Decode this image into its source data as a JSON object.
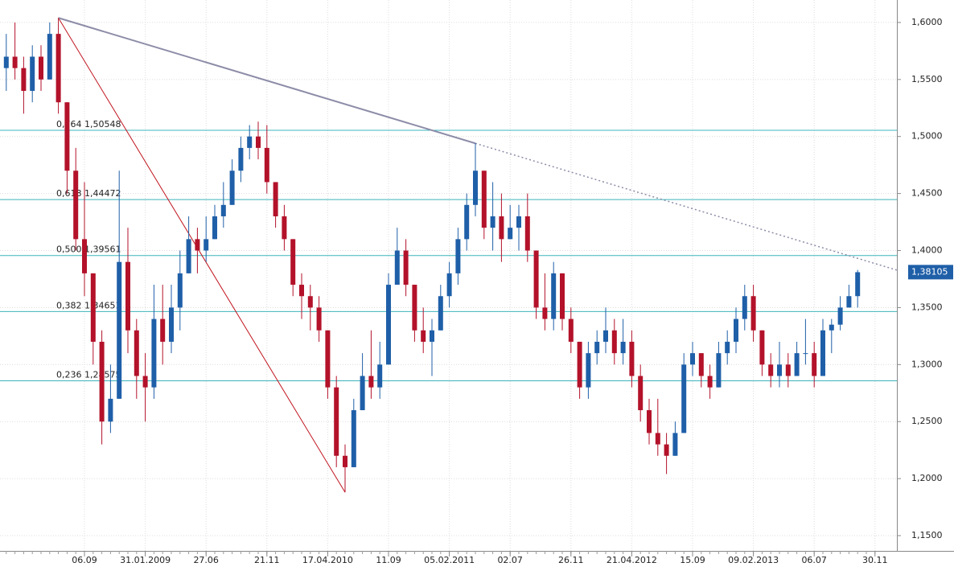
{
  "chart_data": {
    "type": "candlestick",
    "categories": [
      null,
      null,
      null,
      null,
      null,
      null,
      null,
      null,
      null,
      null,
      "06.09",
      null,
      null,
      null,
      null,
      null,
      null,
      "31.01.2009",
      null,
      null,
      null,
      null,
      null,
      null,
      "27.06",
      null,
      null,
      null,
      null,
      null,
      null,
      "21.11",
      null,
      null,
      null,
      null,
      null,
      null,
      "17.04.2010",
      null,
      null,
      null,
      null,
      null,
      null,
      "11.09",
      null,
      null,
      null,
      null,
      null,
      null,
      "05.02.2011",
      null,
      null,
      null,
      null,
      null,
      null,
      "02.07",
      null,
      null,
      null,
      null,
      null,
      null,
      "26.11",
      null,
      null,
      null,
      null,
      null,
      null,
      "21.04.2012",
      null,
      null,
      null,
      null,
      null,
      null,
      "15.09",
      null,
      null,
      null,
      null,
      null,
      null,
      "09.02.2013",
      null,
      null,
      null,
      null,
      null,
      null,
      "06.07",
      null,
      null,
      null,
      null,
      null,
      null,
      "30.11"
    ],
    "open": [
      1.53,
      1.56,
      1.57,
      1.56,
      1.54,
      1.57,
      1.55,
      1.59,
      1.53,
      1.47,
      1.41,
      1.38,
      1.32,
      1.25,
      1.27,
      1.39,
      1.33,
      1.29,
      1.28,
      1.34,
      1.32,
      1.35,
      1.38,
      1.41,
      1.4,
      1.41,
      1.43,
      1.44,
      1.47,
      1.49,
      1.5,
      1.49,
      1.46,
      1.43,
      1.41,
      1.37,
      1.36,
      1.35,
      1.33,
      1.28,
      1.22,
      1.21,
      1.26,
      1.29,
      1.28,
      1.3,
      1.37,
      1.4,
      1.37,
      1.33,
      1.32,
      1.33,
      1.36,
      1.38,
      1.41,
      1.44,
      1.47,
      1.42,
      1.43,
      1.41,
      1.42,
      1.43,
      1.4,
      1.35,
      1.34,
      1.38,
      1.34,
      1.32,
      1.28,
      1.31,
      1.32,
      1.33,
      1.31,
      1.32,
      1.29,
      1.26,
      1.24,
      1.23,
      1.22,
      1.24,
      1.3,
      1.31,
      1.29,
      1.28,
      1.31,
      1.32,
      1.34,
      1.36,
      1.33,
      1.3,
      1.29,
      1.3,
      1.29,
      1.31,
      1.31,
      1.29,
      1.33,
      1.335,
      1.35,
      1.36,
      null,
      null
    ],
    "high": [
      1.58,
      1.59,
      1.6,
      1.57,
      1.58,
      1.58,
      1.6,
      1.604,
      1.53,
      1.49,
      1.46,
      1.38,
      1.33,
      1.3,
      1.47,
      1.42,
      1.34,
      1.31,
      1.37,
      1.37,
      1.37,
      1.4,
      1.43,
      1.42,
      1.43,
      1.44,
      1.46,
      1.48,
      1.5,
      1.51,
      1.513,
      1.51,
      1.46,
      1.44,
      1.41,
      1.38,
      1.37,
      1.36,
      1.33,
      1.29,
      1.23,
      1.27,
      1.31,
      1.33,
      1.32,
      1.38,
      1.42,
      1.41,
      1.37,
      1.35,
      1.34,
      1.37,
      1.39,
      1.42,
      1.45,
      1.494,
      1.47,
      1.46,
      1.45,
      1.44,
      1.44,
      1.45,
      1.4,
      1.38,
      1.39,
      1.38,
      1.35,
      1.32,
      1.32,
      1.33,
      1.35,
      1.34,
      1.34,
      1.33,
      1.3,
      1.27,
      1.27,
      1.24,
      1.25,
      1.31,
      1.32,
      1.31,
      1.3,
      1.32,
      1.33,
      1.35,
      1.37,
      1.37,
      1.33,
      1.31,
      1.32,
      1.31,
      1.32,
      1.34,
      1.32,
      1.34,
      1.34,
      1.36,
      1.37,
      1.383,
      null,
      null
    ],
    "low": [
      1.51,
      1.54,
      1.55,
      1.52,
      1.53,
      1.54,
      1.55,
      1.52,
      1.45,
      1.4,
      1.36,
      1.3,
      1.23,
      1.24,
      1.27,
      1.31,
      1.27,
      1.25,
      1.27,
      1.3,
      1.31,
      1.33,
      1.38,
      1.38,
      1.39,
      1.41,
      1.42,
      1.44,
      1.46,
      1.48,
      1.48,
      1.45,
      1.42,
      1.4,
      1.36,
      1.34,
      1.33,
      1.32,
      1.27,
      1.21,
      1.188,
      1.21,
      1.26,
      1.27,
      1.27,
      1.3,
      1.37,
      1.36,
      1.32,
      1.31,
      1.29,
      1.33,
      1.35,
      1.37,
      1.4,
      1.43,
      1.41,
      1.4,
      1.39,
      1.41,
      1.4,
      1.39,
      1.34,
      1.33,
      1.33,
      1.33,
      1.31,
      1.27,
      1.27,
      1.3,
      1.31,
      1.3,
      1.3,
      1.28,
      1.25,
      1.23,
      1.22,
      1.204,
      1.22,
      1.24,
      1.29,
      1.28,
      1.27,
      1.28,
      1.3,
      1.31,
      1.33,
      1.32,
      1.29,
      1.28,
      1.28,
      1.28,
      1.29,
      1.3,
      1.28,
      1.29,
      1.31,
      1.33,
      1.35,
      1.35,
      null,
      null
    ],
    "close": [
      1.56,
      1.57,
      1.56,
      1.54,
      1.57,
      1.55,
      1.59,
      1.53,
      1.47,
      1.41,
      1.38,
      1.32,
      1.25,
      1.27,
      1.39,
      1.33,
      1.29,
      1.28,
      1.34,
      1.32,
      1.35,
      1.38,
      1.41,
      1.4,
      1.41,
      1.43,
      1.44,
      1.47,
      1.49,
      1.5,
      1.49,
      1.46,
      1.43,
      1.41,
      1.37,
      1.36,
      1.35,
      1.33,
      1.28,
      1.22,
      1.21,
      1.26,
      1.29,
      1.28,
      1.3,
      1.37,
      1.4,
      1.37,
      1.33,
      1.32,
      1.33,
      1.36,
      1.38,
      1.41,
      1.44,
      1.47,
      1.42,
      1.43,
      1.41,
      1.42,
      1.43,
      1.4,
      1.35,
      1.34,
      1.38,
      1.34,
      1.32,
      1.28,
      1.31,
      1.32,
      1.33,
      1.31,
      1.32,
      1.29,
      1.26,
      1.24,
      1.23,
      1.22,
      1.24,
      1.3,
      1.31,
      1.29,
      1.28,
      1.31,
      1.32,
      1.34,
      1.36,
      1.33,
      1.3,
      1.29,
      1.3,
      1.29,
      1.31,
      1.31,
      1.29,
      1.33,
      1.335,
      1.35,
      1.36,
      1.381,
      null,
      null
    ],
    "up_color": "#1f5fa8",
    "down_color": "#b3122a",
    "ylim": [
      1.1366,
      1.6197
    ],
    "yticks": [
      {
        "value": 1.15,
        "label": "1,1500"
      },
      {
        "value": 1.2,
        "label": "1,2000"
      },
      {
        "value": 1.25,
        "label": "1,2500"
      },
      {
        "value": 1.3,
        "label": "1,3000"
      },
      {
        "value": 1.35,
        "label": "1,3500"
      },
      {
        "value": 1.4,
        "label": "1,4000"
      },
      {
        "value": 1.45,
        "label": "1,4500"
      },
      {
        "value": 1.5,
        "label": "1,5000"
      },
      {
        "value": 1.55,
        "label": "1,5500"
      },
      {
        "value": 1.6,
        "label": "1,6000"
      }
    ],
    "grid": true,
    "fib_color": "#3cb4bc",
    "fib_levels": [
      {
        "value": 1.50548,
        "label": "0,764 1,50548"
      },
      {
        "value": 1.44472,
        "label": "0,618 1,44472"
      },
      {
        "value": 1.39561,
        "label": "0,500 1,39561"
      },
      {
        "value": 1.34651,
        "label": "0,382 1,34651"
      },
      {
        "value": 1.28575,
        "label": "0,236 1,28575"
      }
    ],
    "trend_lines": [
      {
        "from_index": 7,
        "from_value": 1.604,
        "to_index": 40,
        "to_value": 1.188,
        "color": "#c0141e",
        "extend": false
      },
      {
        "from_index": 7,
        "from_value": 1.604,
        "to_index": 55,
        "to_value": 1.494,
        "color": "#8c8ca8",
        "extend": true
      }
    ],
    "last_price": {
      "value": 1.38105,
      "label": "1,38105"
    }
  }
}
